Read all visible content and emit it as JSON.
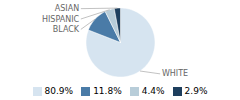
{
  "chart_data": {
    "type": "pie",
    "categories": [
      "WHITE",
      "BLACK",
      "HISPANIC",
      "ASIAN"
    ],
    "values": [
      80.9,
      11.8,
      4.4,
      2.9
    ],
    "value_labels": [
      "80.9%",
      "11.8%",
      "4.4%",
      "2.9%"
    ],
    "colors": [
      "#d6e4f0",
      "#4a7ba7",
      "#b8cdd9",
      "#1e3f5e"
    ],
    "legend": "bottom"
  }
}
